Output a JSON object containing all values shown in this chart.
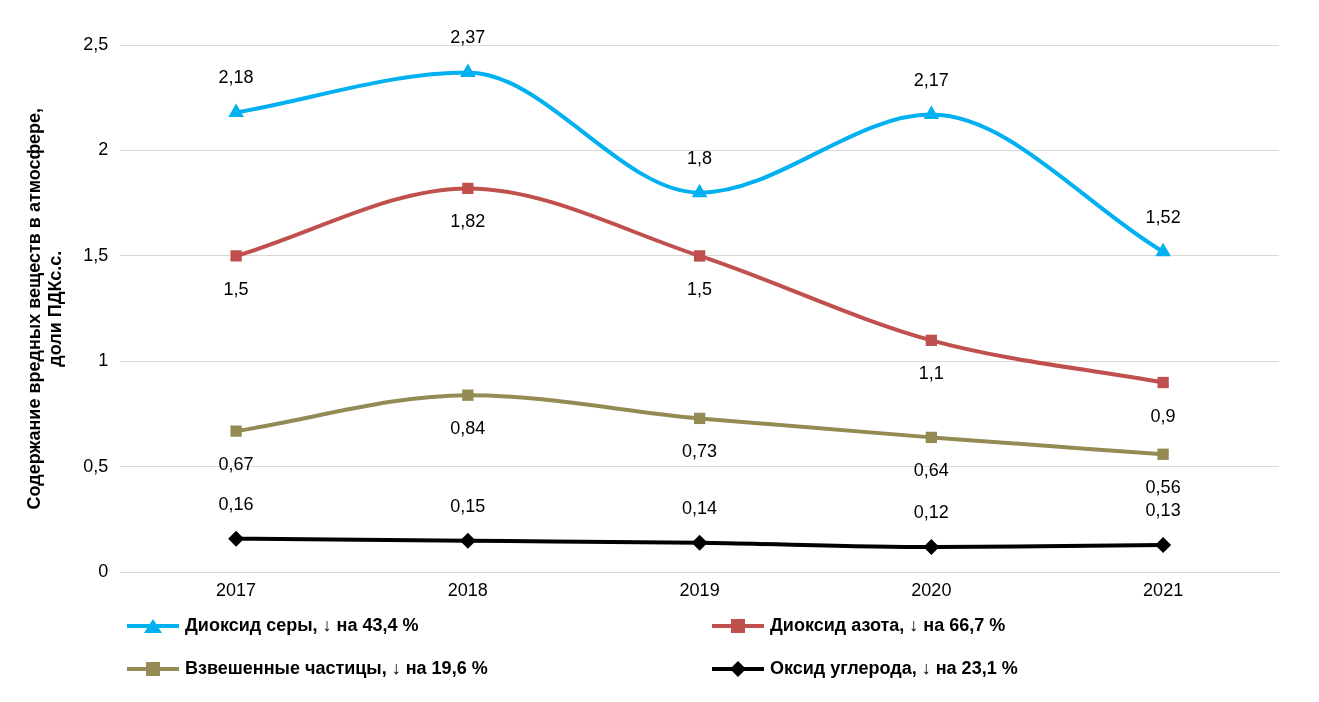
{
  "chart_data": {
    "type": "line",
    "ylabel": "Содержание вредных веществ в атмосфере, доли ПДКс.с.",
    "categories": [
      "2017",
      "2018",
      "2019",
      "2020",
      "2021"
    ],
    "series": [
      {
        "name": "Диоксид серы, ↓ на 43,4 %",
        "color": "#00b0f0",
        "marker": "triangle",
        "values": [
          2.18,
          2.37,
          1.8,
          2.17,
          1.52
        ],
        "value_labels": [
          "2,18",
          "2,37",
          "1,8",
          "2,17",
          "1,52"
        ]
      },
      {
        "name": "Диоксид азота, ↓ на 66,7 %",
        "color": "#c0504d",
        "marker": "square",
        "values": [
          1.5,
          1.82,
          1.5,
          1.1,
          0.9
        ],
        "value_labels": [
          "1,5",
          "1,82",
          "1,5",
          "1,1",
          "0,9"
        ]
      },
      {
        "name": "Взвешенные частицы, ↓ на 19,6 %",
        "color": "#948a54",
        "marker": "square",
        "values": [
          0.67,
          0.84,
          0.73,
          0.64,
          0.56
        ],
        "value_labels": [
          "0,67",
          "0,84",
          "0,73",
          "0,64",
          "0,56"
        ]
      },
      {
        "name": "Оксид углерода, ↓ на 23,1 %",
        "color": "#000000",
        "marker": "diamond",
        "values": [
          0.16,
          0.15,
          0.14,
          0.12,
          0.13
        ],
        "value_labels": [
          "0,16",
          "0,15",
          "0,14",
          "0,12",
          "0,13"
        ]
      }
    ],
    "ylim": [
      0,
      2.5
    ],
    "yticks": [
      {
        "value": 0,
        "label": "0"
      },
      {
        "value": 0.5,
        "label": "0,5"
      },
      {
        "value": 1,
        "label": "1"
      },
      {
        "value": 1.5,
        "label": "1,5"
      },
      {
        "value": 2,
        "label": "2"
      },
      {
        "value": 2.5,
        "label": "2,5"
      }
    ],
    "grid": "y",
    "legend": "bottom"
  }
}
